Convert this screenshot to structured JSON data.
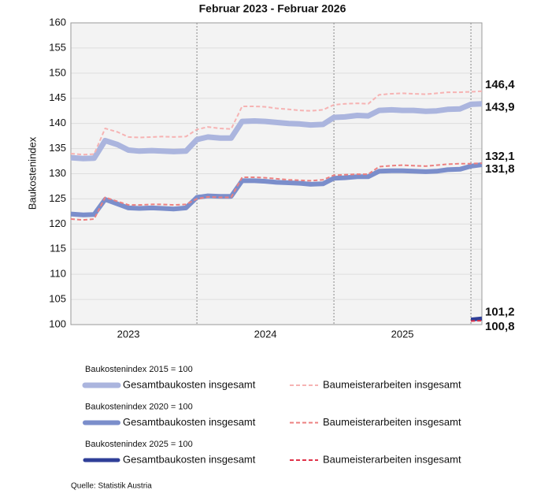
{
  "chart_data": {
    "type": "line",
    "title": "Februar 2023 - Februar 2026",
    "y_label": "Baukostenindex",
    "source": "Quelle: Statistik Austria",
    "legend_groups": [
      "Baukostenindex 2015 = 100",
      "Baukostenindex 2020 = 100",
      "Baukostenindex 2025 = 100"
    ],
    "x": [
      2023.08,
      2023.17,
      2023.25,
      2023.33,
      2023.42,
      2023.5,
      2023.58,
      2023.67,
      2023.75,
      2023.83,
      2023.92,
      2024.0,
      2024.08,
      2024.17,
      2024.25,
      2024.33,
      2024.42,
      2024.5,
      2024.58,
      2024.67,
      2024.75,
      2024.83,
      2024.92,
      2025.0,
      2025.08,
      2025.17,
      2025.25,
      2025.33,
      2025.42,
      2025.5,
      2025.58,
      2025.67,
      2025.75,
      2025.83,
      2025.92,
      2026.0,
      2026.08
    ],
    "xlim": [
      2023.08,
      2026.08
    ],
    "xticks": [
      {
        "value": 2023.5,
        "label": "2023"
      },
      {
        "value": 2024.5,
        "label": "2024"
      },
      {
        "value": 2025.5,
        "label": "2025"
      }
    ],
    "xgrid": [
      2024,
      2025,
      2026
    ],
    "ylim": [
      100,
      160
    ],
    "yticks": [
      100,
      105,
      110,
      115,
      120,
      125,
      130,
      135,
      140,
      145,
      150,
      155,
      160
    ],
    "grid": true,
    "series": [
      {
        "name": "Gesamtbaukosten insgesamt",
        "color": "#abb5de",
        "label_color": "#3a4796",
        "dashed": false,
        "width": 7,
        "values": [
          133.2,
          133.0,
          133.1,
          136.6,
          135.8,
          134.7,
          134.5,
          134.6,
          134.5,
          134.4,
          134.5,
          136.8,
          137.3,
          137.1,
          137.1,
          140.4,
          140.5,
          140.4,
          140.2,
          140.0,
          139.9,
          139.7,
          139.8,
          141.2,
          141.3,
          141.6,
          141.5,
          142.6,
          142.7,
          142.6,
          142.6,
          142.4,
          142.5,
          142.8,
          142.9,
          143.8,
          143.9
        ],
        "value_labels": [
          null,
          null,
          null,
          null,
          null,
          null,
          null,
          null,
          null,
          null,
          null,
          null,
          null,
          null,
          null,
          null,
          null,
          null,
          null,
          null,
          null,
          null,
          null,
          null,
          null,
          null,
          null,
          null,
          null,
          null,
          null,
          null,
          null,
          null,
          null,
          null,
          "143,9"
        ]
      },
      {
        "name": "Baumeisterarbeiten insgesamt",
        "color": "#f6b3b3",
        "label_color": "#e04452",
        "dashed": true,
        "width": 2,
        "values": [
          134.0,
          133.8,
          133.9,
          139.0,
          138.3,
          137.3,
          137.2,
          137.3,
          137.4,
          137.3,
          137.4,
          138.8,
          139.3,
          139.0,
          138.9,
          143.4,
          143.4,
          143.3,
          143.0,
          142.8,
          142.6,
          142.5,
          142.7,
          143.7,
          143.9,
          144.0,
          143.9,
          145.7,
          145.9,
          146.0,
          145.9,
          145.8,
          146.0,
          146.2,
          146.2,
          146.3,
          146.4
        ],
        "value_labels": [
          null,
          null,
          null,
          null,
          null,
          null,
          null,
          null,
          null,
          null,
          null,
          null,
          null,
          null,
          null,
          null,
          null,
          null,
          null,
          null,
          null,
          null,
          null,
          null,
          null,
          null,
          null,
          null,
          null,
          null,
          null,
          null,
          null,
          null,
          null,
          null,
          "146,4"
        ]
      },
      {
        "name": "Gesamtbaukosten insgesamt",
        "color": "#7b8ecb",
        "label_color": "#3a4796",
        "dashed": false,
        "width": 6,
        "values": [
          122.0,
          121.8,
          121.9,
          124.9,
          124.0,
          123.2,
          123.1,
          123.2,
          123.1,
          123.0,
          123.2,
          125.3,
          125.6,
          125.5,
          125.5,
          128.6,
          128.6,
          128.5,
          128.3,
          128.2,
          128.1,
          127.9,
          128.0,
          129.1,
          129.2,
          129.4,
          129.4,
          130.5,
          130.6,
          130.6,
          130.5,
          130.4,
          130.5,
          130.8,
          130.9,
          131.5,
          131.8
        ],
        "value_labels": [
          null,
          null,
          null,
          null,
          null,
          null,
          null,
          null,
          null,
          null,
          null,
          null,
          null,
          null,
          null,
          null,
          null,
          null,
          null,
          null,
          null,
          null,
          null,
          null,
          null,
          null,
          null,
          null,
          null,
          null,
          null,
          null,
          null,
          null,
          null,
          null,
          "131,8"
        ]
      },
      {
        "name": "Baumeisterarbeiten insgesamt",
        "color": "#ec8080",
        "label_color": "#e04452",
        "dashed": true,
        "width": 2,
        "values": [
          121.0,
          120.8,
          121.0,
          125.3,
          124.5,
          123.8,
          123.8,
          123.9,
          123.9,
          123.8,
          123.9,
          125.0,
          125.4,
          125.3,
          125.3,
          129.3,
          129.3,
          129.2,
          129.0,
          128.8,
          128.7,
          128.6,
          128.8,
          129.7,
          129.8,
          129.9,
          129.9,
          131.4,
          131.6,
          131.7,
          131.6,
          131.5,
          131.7,
          131.9,
          132.0,
          132.0,
          132.1
        ],
        "value_labels": [
          null,
          null,
          null,
          null,
          null,
          null,
          null,
          null,
          null,
          null,
          null,
          null,
          null,
          null,
          null,
          null,
          null,
          null,
          null,
          null,
          null,
          null,
          null,
          null,
          null,
          null,
          null,
          null,
          null,
          null,
          null,
          null,
          null,
          null,
          null,
          null,
          "132,1"
        ]
      },
      {
        "name": "Gesamtbaukosten insgesamt",
        "color": "#2f3f98",
        "label_color": "#3a4796",
        "dashed": false,
        "width": 5,
        "values": [
          null,
          null,
          null,
          null,
          null,
          null,
          null,
          null,
          null,
          null,
          null,
          null,
          null,
          null,
          null,
          null,
          null,
          null,
          null,
          null,
          null,
          null,
          null,
          null,
          null,
          null,
          null,
          null,
          null,
          null,
          null,
          null,
          null,
          null,
          null,
          101.0,
          101.2
        ],
        "value_labels": [
          null,
          null,
          null,
          null,
          null,
          null,
          null,
          null,
          null,
          null,
          null,
          null,
          null,
          null,
          null,
          null,
          null,
          null,
          null,
          null,
          null,
          null,
          null,
          null,
          null,
          null,
          null,
          null,
          null,
          null,
          null,
          null,
          null,
          null,
          null,
          null,
          "101,2"
        ]
      },
      {
        "name": "Baumeisterarbeiten insgesamt",
        "color": "#e0334a",
        "label_color": "#e04452",
        "dashed": true,
        "width": 2,
        "values": [
          null,
          null,
          null,
          null,
          null,
          null,
          null,
          null,
          null,
          null,
          null,
          null,
          null,
          null,
          null,
          null,
          null,
          null,
          null,
          null,
          null,
          null,
          null,
          null,
          null,
          null,
          null,
          null,
          null,
          null,
          null,
          null,
          null,
          null,
          null,
          100.7,
          100.8
        ],
        "value_labels": [
          null,
          null,
          null,
          null,
          null,
          null,
          null,
          null,
          null,
          null,
          null,
          null,
          null,
          null,
          null,
          null,
          null,
          null,
          null,
          null,
          null,
          null,
          null,
          null,
          null,
          null,
          null,
          null,
          null,
          null,
          null,
          null,
          null,
          null,
          null,
          null,
          "100,8"
        ]
      }
    ]
  }
}
